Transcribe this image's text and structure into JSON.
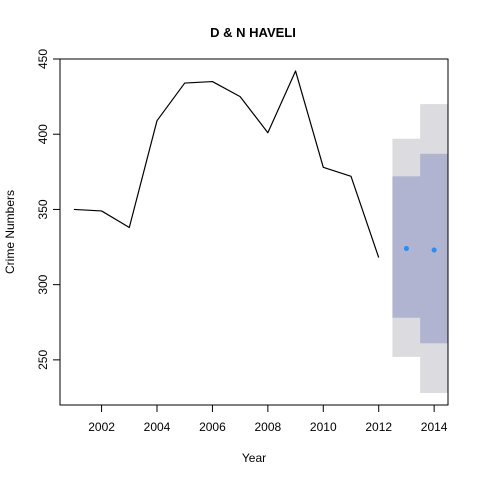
{
  "chart_data": {
    "type": "line",
    "title": "D & N HAVELI",
    "xlabel": "Year",
    "ylabel": "Crime Numbers",
    "xlim": [
      2000.5,
      2014.5
    ],
    "ylim": [
      220,
      450
    ],
    "x_ticks": [
      2002,
      2004,
      2006,
      2008,
      2010,
      2012,
      2014
    ],
    "y_ticks": [
      250,
      300,
      350,
      400,
      450
    ],
    "grid": false,
    "legend": "none",
    "series": [
      {
        "x": [
          2001,
          2002,
          2003,
          2004,
          2005,
          2006,
          2007,
          2008,
          2009,
          2010,
          2011,
          2012
        ],
        "values": [
          350,
          349,
          338,
          409,
          434,
          435,
          425,
          401,
          442,
          378,
          372,
          318
        ],
        "color": "#000000"
      }
    ],
    "forecast": {
      "x": [
        2013,
        2014
      ],
      "mean": [
        324,
        323
      ],
      "lo80": [
        278,
        261
      ],
      "hi80": [
        372,
        387
      ],
      "lo95": [
        252,
        228
      ],
      "hi95": [
        397,
        420
      ],
      "point_color": "#1e90ff",
      "band80_color": "#b0b4d1",
      "band95_color": "#dcdce0"
    }
  }
}
